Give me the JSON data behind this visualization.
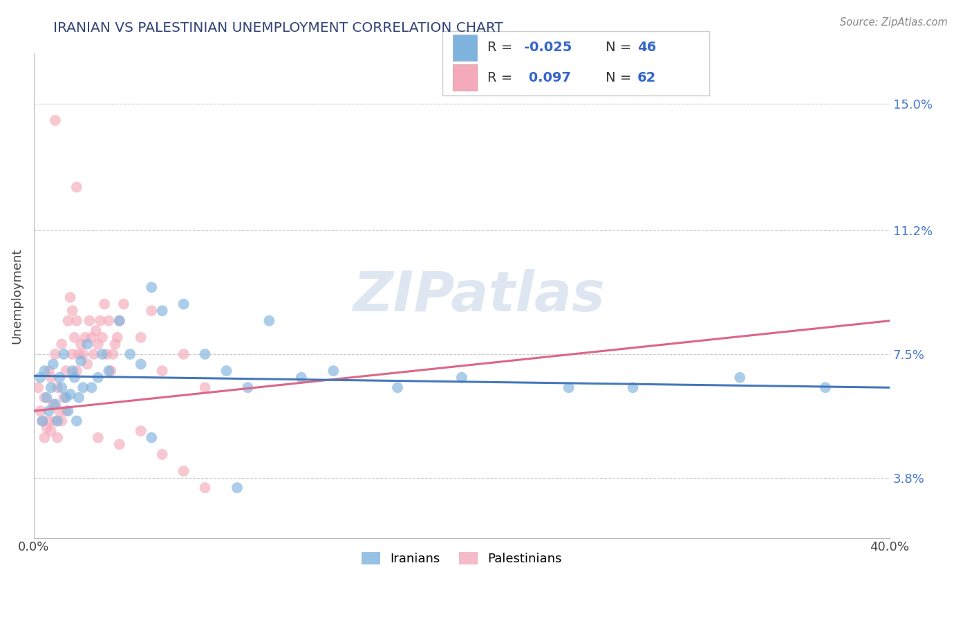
{
  "title": "IRANIAN VS PALESTINIAN UNEMPLOYMENT CORRELATION CHART",
  "source": "Source: ZipAtlas.com",
  "ylabel": "Unemployment",
  "yticks": [
    3.8,
    7.5,
    11.2,
    15.0
  ],
  "xlim": [
    0.0,
    40.0
  ],
  "ylim": [
    2.0,
    16.5
  ],
  "iranian_R": -0.025,
  "iranian_N": 46,
  "palestinian_R": 0.097,
  "palestinian_N": 62,
  "iranian_color": "#7EB3DE",
  "palestinian_color": "#F4AABB",
  "iranian_line_color": "#4477BB",
  "palestinian_line_color": "#DD6688",
  "watermark": "ZIPatlas",
  "watermark_color": "#C8D8E8",
  "iranian_x": [
    0.3,
    0.4,
    0.5,
    0.6,
    0.7,
    0.8,
    0.9,
    1.0,
    1.1,
    1.2,
    1.3,
    1.4,
    1.5,
    1.6,
    1.7,
    1.8,
    1.9,
    2.0,
    2.1,
    2.2,
    2.3,
    2.5,
    2.7,
    3.0,
    3.2,
    3.5,
    4.0,
    4.5,
    5.0,
    5.5,
    6.0,
    7.0,
    8.0,
    9.0,
    10.0,
    11.0,
    12.5,
    14.0,
    17.0,
    20.0,
    25.0,
    28.0,
    33.0,
    37.0,
    5.5,
    9.5
  ],
  "iranian_y": [
    6.8,
    5.5,
    7.0,
    6.2,
    5.8,
    6.5,
    7.2,
    6.0,
    5.5,
    6.8,
    6.5,
    7.5,
    6.2,
    5.8,
    6.3,
    7.0,
    6.8,
    5.5,
    6.2,
    7.3,
    6.5,
    7.8,
    6.5,
    6.8,
    7.5,
    7.0,
    8.5,
    7.5,
    7.2,
    9.5,
    8.8,
    9.0,
    7.5,
    7.0,
    6.5,
    8.5,
    6.8,
    7.0,
    6.5,
    6.8,
    6.5,
    6.5,
    6.8,
    6.5,
    5.0,
    3.5
  ],
  "palestinian_x": [
    0.2,
    0.3,
    0.4,
    0.5,
    0.5,
    0.6,
    0.7,
    0.7,
    0.8,
    0.8,
    0.9,
    1.0,
    1.0,
    1.1,
    1.1,
    1.2,
    1.3,
    1.3,
    1.4,
    1.5,
    1.5,
    1.6,
    1.7,
    1.8,
    1.8,
    1.9,
    2.0,
    2.0,
    2.1,
    2.2,
    2.3,
    2.4,
    2.5,
    2.6,
    2.7,
    2.8,
    2.9,
    3.0,
    3.1,
    3.2,
    3.3,
    3.4,
    3.5,
    3.6,
    3.7,
    3.8,
    3.9,
    4.0,
    4.2,
    5.0,
    5.5,
    6.0,
    7.0,
    8.0,
    1.0,
    2.0,
    3.0,
    4.0,
    5.0,
    6.0,
    7.0,
    8.0
  ],
  "palestinian_y": [
    6.5,
    5.8,
    5.5,
    5.0,
    6.2,
    5.3,
    5.5,
    7.0,
    5.2,
    6.8,
    6.0,
    5.5,
    7.5,
    5.0,
    6.5,
    5.8,
    5.5,
    7.8,
    6.2,
    5.8,
    7.0,
    8.5,
    9.2,
    7.5,
    8.8,
    8.0,
    7.0,
    8.5,
    7.5,
    7.8,
    7.5,
    8.0,
    7.2,
    8.5,
    8.0,
    7.5,
    8.2,
    7.8,
    8.5,
    8.0,
    9.0,
    7.5,
    8.5,
    7.0,
    7.5,
    7.8,
    8.0,
    8.5,
    9.0,
    8.0,
    8.8,
    7.0,
    7.5,
    6.5,
    14.5,
    12.5,
    5.0,
    4.8,
    5.2,
    4.5,
    4.0,
    3.5
  ],
  "iran_line_x0": 0.0,
  "iran_line_y0": 6.85,
  "iran_line_x1": 40.0,
  "iran_line_y1": 6.5,
  "pal_line_x0": 0.0,
  "pal_line_y0": 5.8,
  "pal_line_x1": 40.0,
  "pal_line_y1": 8.5
}
